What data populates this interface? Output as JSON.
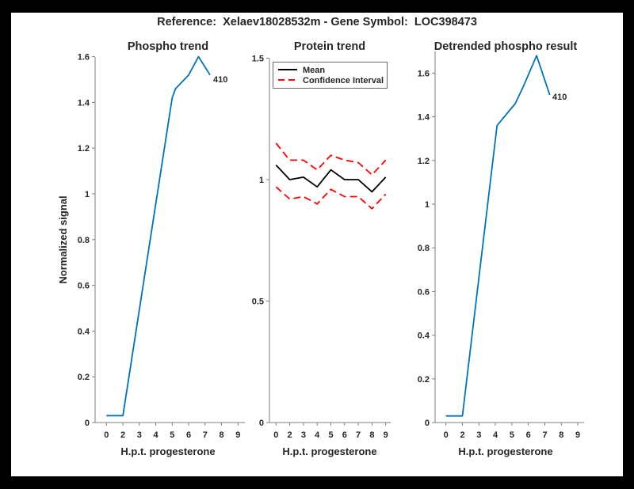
{
  "figure_title": "Reference:  Xelaev18028532m - Gene Symbol:  LOC398473",
  "colors": {
    "phospho_line": "#0072BD",
    "mean_line": "#000000",
    "ci_line": "#ff0000",
    "axis": "#7f7f7f",
    "tick_label": "#262626",
    "frame": "#000000",
    "background": "#ffffff"
  },
  "chart_data": [
    {
      "type": "line",
      "title": "Phospho trend",
      "xlabel": "H.p.t. progesterone",
      "ylabel": "Normalized signal",
      "x_tick_labels": [
        "0",
        "2",
        "3",
        "4",
        "5",
        "6",
        "7",
        "8",
        "9"
      ],
      "y_ticks": [
        0,
        0.2,
        0.4,
        0.6,
        0.8,
        1,
        1.2,
        1.4,
        1.6
      ],
      "ylim": [
        0,
        1.6
      ],
      "grid": false,
      "series": [
        {
          "name": "Phospho trend",
          "color_key": "phospho_line",
          "style": "solid",
          "points": [
            [
              0,
              0.03
            ],
            [
              2,
              0.03
            ],
            [
              5,
              1.42
            ],
            [
              5.2,
              1.46
            ],
            [
              6,
              1.52
            ],
            [
              6.6,
              1.6
            ],
            [
              7.3,
              1.52
            ]
          ]
        }
      ],
      "annotation": {
        "text": "410",
        "x": 7.45,
        "y": 1.51
      }
    },
    {
      "type": "line",
      "title": "Protein trend",
      "xlabel": "H.p.t. progesterone",
      "ylabel": "",
      "x_tick_labels": [
        "0",
        "2",
        "3",
        "4",
        "5",
        "6",
        "7",
        "8",
        "9"
      ],
      "y_ticks": [
        0,
        0.5,
        1,
        1.5
      ],
      "ylim": [
        0,
        1.5
      ],
      "grid": false,
      "legend": {
        "position": "top-left",
        "entries": [
          {
            "label": "Mean",
            "color_key": "mean_line",
            "style": "solid"
          },
          {
            "label": "Confidence Interval",
            "color_key": "ci_line",
            "style": "dashed"
          }
        ]
      },
      "series": [
        {
          "name": "Mean",
          "color_key": "mean_line",
          "style": "solid",
          "points": [
            [
              0,
              1.06
            ],
            [
              2,
              1.0
            ],
            [
              3,
              1.01
            ],
            [
              4,
              0.97
            ],
            [
              5,
              1.04
            ],
            [
              6,
              1.0
            ],
            [
              7,
              1.0
            ],
            [
              8,
              0.95
            ],
            [
              9,
              1.01
            ]
          ]
        },
        {
          "name": "Confidence Interval (upper)",
          "color_key": "ci_line",
          "style": "dashed",
          "points": [
            [
              0,
              1.15
            ],
            [
              2,
              1.08
            ],
            [
              3,
              1.08
            ],
            [
              4,
              1.04
            ],
            [
              5,
              1.1
            ],
            [
              6,
              1.08
            ],
            [
              7,
              1.07
            ],
            [
              8,
              1.02
            ],
            [
              9,
              1.08
            ]
          ]
        },
        {
          "name": "Confidence Interval (lower)",
          "color_key": "ci_line",
          "style": "dashed",
          "points": [
            [
              0,
              0.97
            ],
            [
              2,
              0.92
            ],
            [
              3,
              0.93
            ],
            [
              4,
              0.9
            ],
            [
              5,
              0.96
            ],
            [
              6,
              0.93
            ],
            [
              7,
              0.93
            ],
            [
              8,
              0.88
            ],
            [
              9,
              0.94
            ]
          ]
        }
      ]
    },
    {
      "type": "line",
      "title": "Detrended phospho result",
      "xlabel": "H.p.t. progesterone",
      "ylabel": "",
      "x_tick_labels": [
        "0",
        "2",
        "3",
        "4",
        "5",
        "6",
        "7",
        "8",
        "9"
      ],
      "y_ticks": [
        0,
        0.2,
        0.4,
        0.6,
        0.8,
        1,
        1.2,
        1.4,
        1.6
      ],
      "ylim": [
        0,
        1.7
      ],
      "grid": false,
      "series": [
        {
          "name": "Detrended phospho",
          "color_key": "phospho_line",
          "style": "solid",
          "points": [
            [
              0,
              0.03
            ],
            [
              2,
              0.03
            ],
            [
              4.1,
              1.36
            ],
            [
              5.2,
              1.46
            ],
            [
              5.7,
              1.54
            ],
            [
              6.5,
              1.68
            ],
            [
              7.3,
              1.5
            ]
          ]
        }
      ],
      "annotation": {
        "text": "410",
        "x": 7.42,
        "y": 1.49
      }
    }
  ]
}
